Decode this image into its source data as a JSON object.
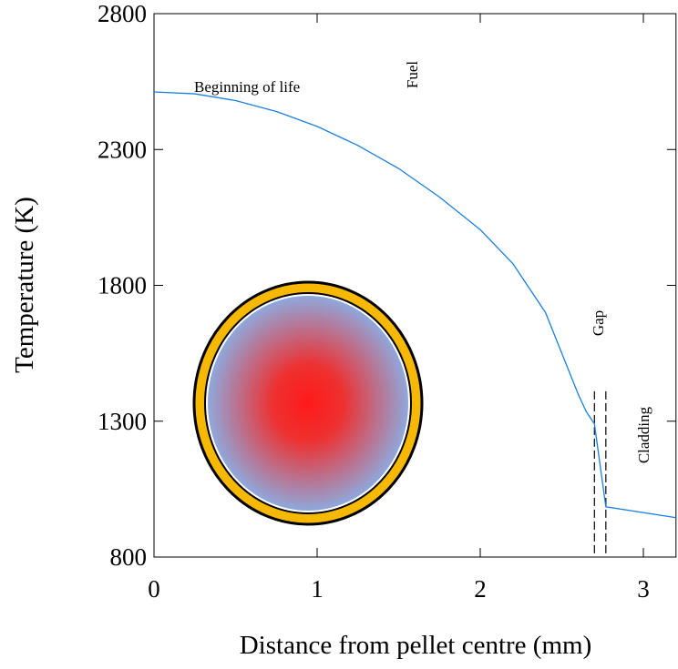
{
  "chart_data": {
    "type": "line",
    "xlabel": "Distance from pellet centre (mm)",
    "ylabel": "Temperature (K)",
    "x": [
      0,
      0.25,
      0.5,
      0.75,
      1.0,
      1.25,
      1.5,
      1.75,
      2.0,
      2.2,
      2.4,
      2.6,
      2.65,
      2.7,
      2.77,
      3.2
    ],
    "series": [
      {
        "name": "Beginning of life",
        "color": "#1a7fe0",
        "values": [
          2512,
          2505,
          2480,
          2440,
          2385,
          2315,
          2230,
          2125,
          2005,
          1880,
          1700,
          1400,
          1335,
          1290,
          985,
          945
        ]
      }
    ],
    "xlim": [
      0,
      3.2
    ],
    "ylim": [
      800,
      2800
    ],
    "xticks": [
      0,
      1,
      2,
      3
    ],
    "yticks": [
      800,
      1300,
      1800,
      2300,
      2800
    ],
    "boundary_lines": {
      "x": [
        2.7,
        2.77
      ],
      "y_top": 1410
    },
    "annotations": [
      "Fuel",
      "Gap",
      "Cladding"
    ]
  }
}
